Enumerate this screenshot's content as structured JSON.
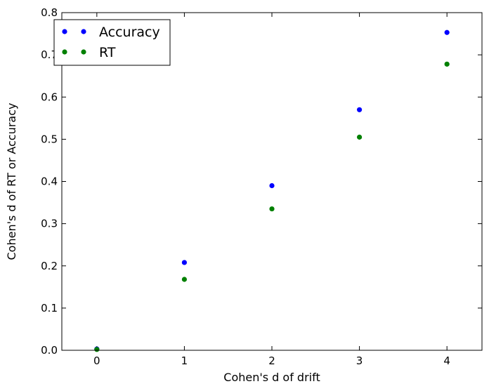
{
  "chart_data": {
    "type": "scatter",
    "title": "",
    "xlabel": "Cohen's d of drift",
    "ylabel": "Cohen's d of RT or Accuracy",
    "xlim": [
      -0.4,
      4.4
    ],
    "ylim": [
      0.0,
      0.8
    ],
    "xticks": [
      0,
      1,
      2,
      3,
      4
    ],
    "yticks": [
      0.0,
      0.1,
      0.2,
      0.3,
      0.4,
      0.5,
      0.6,
      0.7,
      0.8
    ],
    "xtick_labels": [
      "0",
      "1",
      "2",
      "3",
      "4"
    ],
    "ytick_labels": [
      "0.0",
      "0.1",
      "0.2",
      "0.3",
      "0.4",
      "0.5",
      "0.6",
      "0.7",
      "0.8"
    ],
    "grid": false,
    "legend_position": "top-left",
    "series": [
      {
        "name": "Accuracy",
        "color": "#0000ff",
        "x": [
          0,
          1,
          2,
          3,
          4
        ],
        "y": [
          0.003,
          0.208,
          0.39,
          0.57,
          0.753
        ]
      },
      {
        "name": "RT",
        "color": "#008000",
        "x": [
          0,
          1,
          2,
          3,
          4
        ],
        "y": [
          0.002,
          0.168,
          0.335,
          0.505,
          0.678
        ]
      }
    ]
  }
}
